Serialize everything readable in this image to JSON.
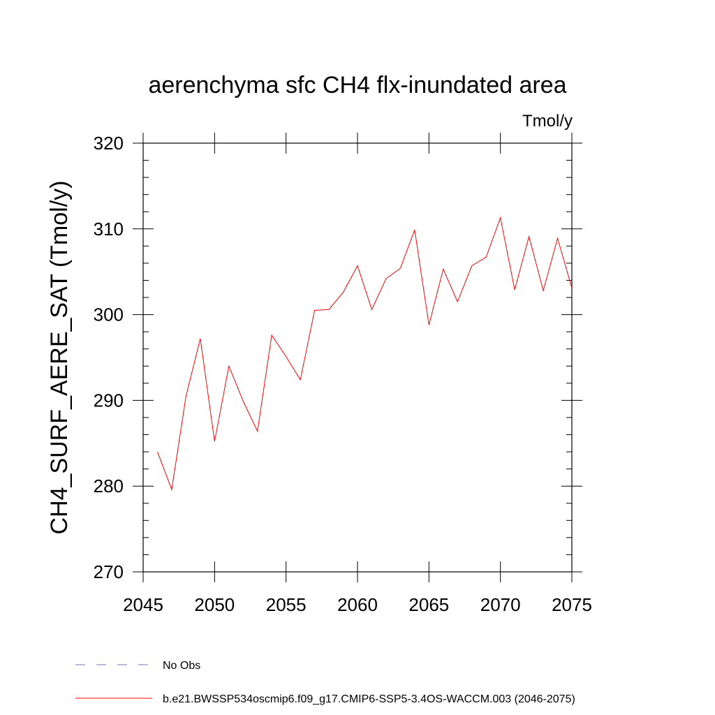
{
  "chart_data": {
    "type": "line",
    "title": "aerenchyma sfc CH4 flx-inundated area",
    "units": "Tmol/y",
    "xlabel": "",
    "ylabel": "CH4_SURF_AERE_SAT  (Tmol/y)",
    "xlim": [
      2045,
      2075
    ],
    "ylim": [
      270,
      320
    ],
    "xticks": [
      2045,
      2050,
      2055,
      2060,
      2065,
      2070,
      2075
    ],
    "yticks": [
      270,
      280,
      290,
      300,
      310,
      320
    ],
    "series": [
      {
        "name": "b.e21.BWSSP534oscmip6.f09_g17.CMIP6-SSP5-3.4OS-WACCM.003 (2046-2075)",
        "color": "#ff0000",
        "x": [
          2046,
          2047,
          2048,
          2049,
          2050,
          2051,
          2052,
          2053,
          2054,
          2055,
          2056,
          2057,
          2058,
          2059,
          2060,
          2061,
          2062,
          2063,
          2064,
          2065,
          2066,
          2067,
          2068,
          2069,
          2070,
          2071,
          2072,
          2073,
          2074,
          2075
        ],
        "values": [
          284.0,
          279.6,
          290.5,
          297.2,
          285.2,
          294.0,
          289.9,
          286.4,
          297.6,
          295.1,
          292.4,
          300.5,
          300.6,
          302.6,
          305.7,
          300.6,
          304.2,
          305.4,
          309.9,
          298.8,
          305.3,
          301.5,
          305.7,
          306.7,
          311.3,
          302.9,
          309.1,
          302.8,
          308.9,
          303.1
        ]
      }
    ],
    "legend": [
      {
        "label": "No Obs",
        "style": "dashed",
        "color": "#7b6fc0"
      },
      {
        "label": "b.e21.BWSSP534oscmip6.f09_g17.CMIP6-SSP5-3.4OS-WACCM.003 (2046-2075)",
        "style": "solid",
        "color": "#ff0000"
      }
    ],
    "legend_position": "bottom-left"
  }
}
